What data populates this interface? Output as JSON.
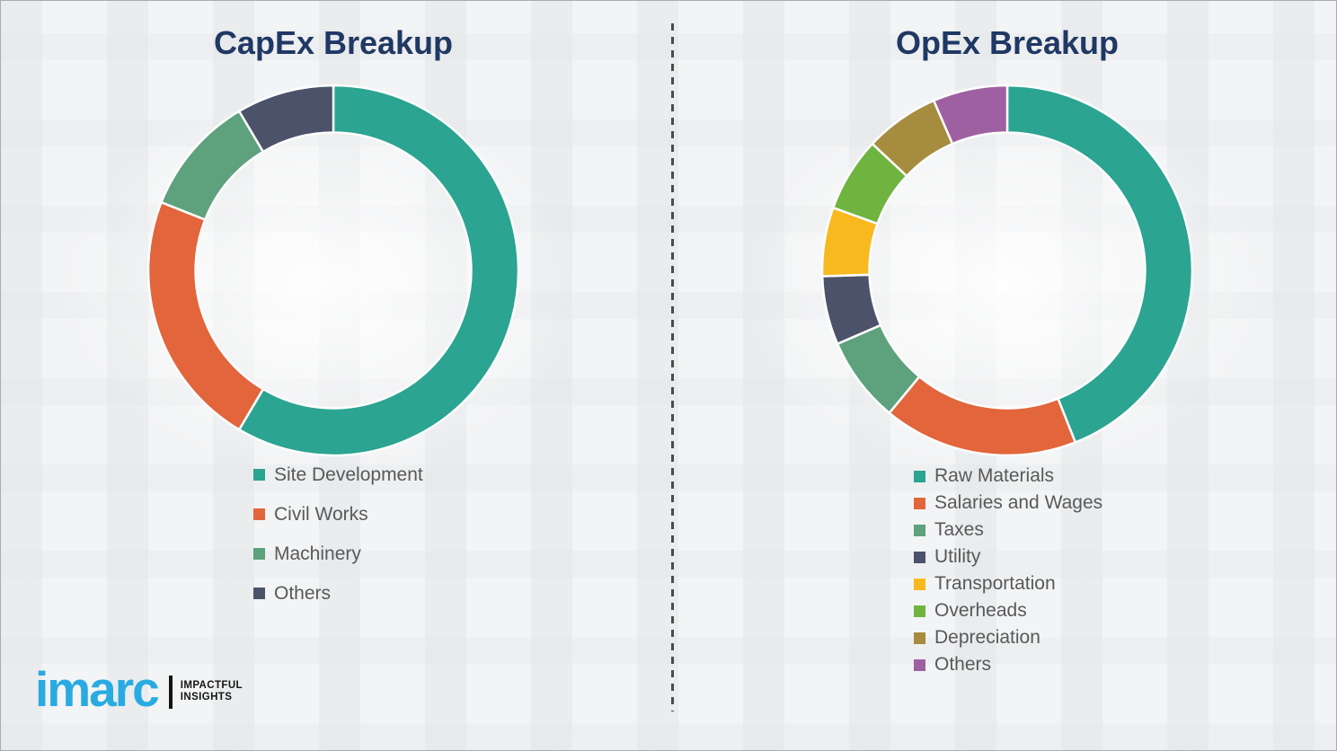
{
  "chart_data": [
    {
      "type": "pie",
      "subtype": "donut",
      "title": "CapEx Breakup",
      "labels": [
        "Site Development",
        "Civil Works",
        "Machinery",
        "Others"
      ],
      "values": [
        58.5,
        22.5,
        10.5,
        8.5
      ],
      "colors": [
        "#2ba491",
        "#e2653c",
        "#5ea17d",
        "#4b5269"
      ],
      "start_angle_deg": 0,
      "direction": "clockwise",
      "legend_position": "below-left"
    },
    {
      "type": "pie",
      "subtype": "donut",
      "title": "OpEx Breakup",
      "labels": [
        "Raw Materials",
        "Salaries and Wages",
        "Taxes",
        "Utility",
        "Transportation",
        "Overheads",
        "Depreciation",
        "Others"
      ],
      "values": [
        44,
        17,
        7.5,
        6,
        6,
        6.5,
        6.5,
        6.5
      ],
      "colors": [
        "#2ba491",
        "#e2653c",
        "#5ea17d",
        "#4b5269",
        "#f8b91f",
        "#6fb43f",
        "#a68c3e",
        "#9e60a0"
      ],
      "start_angle_deg": 0,
      "direction": "clockwise",
      "legend_position": "below-left"
    }
  ],
  "logo": {
    "brand": "imarc",
    "tagline_line1": "IMPACTFUL",
    "tagline_line2": "INSIGHTS",
    "brand_color": "#29abe2",
    "tagline_color": "#151515"
  },
  "theme": {
    "background": "#f3f4f5",
    "border_color": "#a8adb3",
    "title_color": "#1f3864",
    "legend_text_color": "#595959",
    "divider_color": "#4b4b4b",
    "segment_gap_color": "#fcfdfd"
  }
}
